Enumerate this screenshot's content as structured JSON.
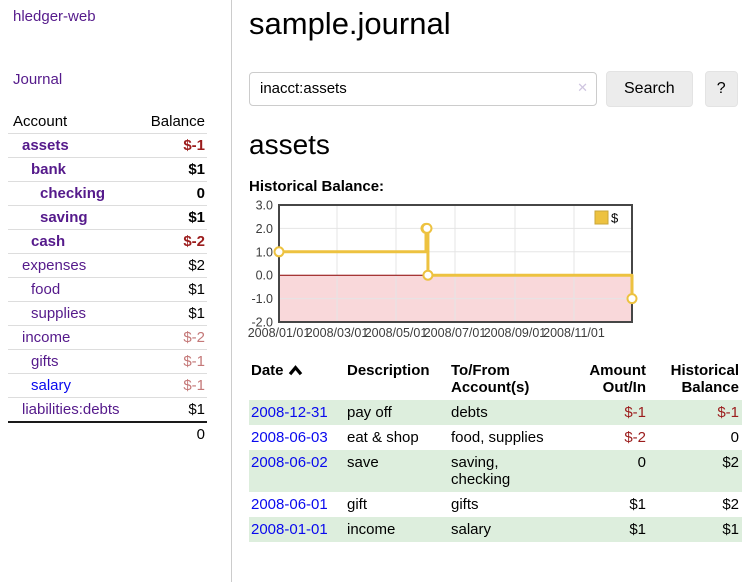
{
  "app": {
    "title": "hledger-web",
    "nav_journal": "Journal"
  },
  "sidebar": {
    "headers": {
      "account": "Account",
      "balance": "Balance"
    },
    "rows": [
      {
        "account": "assets",
        "level": 0,
        "bold": true,
        "link": "visited",
        "balance": "$-1",
        "balance_style": "neg-strong"
      },
      {
        "account": "bank",
        "level": 1,
        "bold": true,
        "link": "visited",
        "balance": "$1",
        "balance_style": "plain"
      },
      {
        "account": "checking",
        "level": 2,
        "bold": true,
        "link": "visited",
        "balance": "0",
        "balance_style": "plain"
      },
      {
        "account": "saving",
        "level": 2,
        "bold": true,
        "link": "visited",
        "balance": "$1",
        "balance_style": "plain"
      },
      {
        "account": "cash",
        "level": 1,
        "bold": true,
        "link": "visited",
        "balance": "$-2",
        "balance_style": "neg-strong"
      },
      {
        "account": "expenses",
        "level": 0,
        "bold": false,
        "link": "visited",
        "balance": "$2",
        "balance_style": "plain"
      },
      {
        "account": "food",
        "level": 1,
        "bold": false,
        "link": "visited",
        "balance": "$1",
        "balance_style": "plain"
      },
      {
        "account": "supplies",
        "level": 1,
        "bold": false,
        "link": "visited",
        "balance": "$1",
        "balance_style": "plain"
      },
      {
        "account": "income",
        "level": 0,
        "bold": false,
        "link": "visited",
        "balance": "$-2",
        "balance_style": "neg-soft"
      },
      {
        "account": "gifts",
        "level": 1,
        "bold": false,
        "link": "visited",
        "balance": "$-1",
        "balance_style": "neg-soft"
      },
      {
        "account": "salary",
        "level": 1,
        "bold": false,
        "link": "unvisited",
        "balance": "$-1",
        "balance_style": "neg-soft"
      },
      {
        "account": "liabilities:debts",
        "level": 0,
        "bold": false,
        "link": "visited",
        "balance": "$1",
        "balance_style": "plain"
      }
    ],
    "total": "0"
  },
  "main": {
    "title": "sample.journal",
    "search": {
      "value": "inacct:assets",
      "clear_icon": "✕",
      "button_label": "Search",
      "help_label": "?"
    },
    "account_heading": "assets",
    "chart_label": "Historical Balance:"
  },
  "chart_data": {
    "type": "line",
    "step": true,
    "title": "Historical Balance",
    "x_range": [
      "2008-01-01",
      "2008-12-31"
    ],
    "ylim": [
      -2,
      3
    ],
    "ytick_values": [
      3,
      2,
      1,
      0,
      -1,
      -2
    ],
    "yticks": [
      "3.0",
      "2.0",
      "1.0",
      "0.0",
      "-1.0",
      "-2.0"
    ],
    "xticks": [
      {
        "label": "2008/01/01",
        "date": "2008-01-01"
      },
      {
        "label": "2008/03/01",
        "date": "2008-03-01"
      },
      {
        "label": "2008/05/01",
        "date": "2008-05-01"
      },
      {
        "label": "2008/07/01",
        "date": "2008-07-01"
      },
      {
        "label": "2008/09/01",
        "date": "2008-09-01"
      },
      {
        "label": "2008/11/01",
        "date": "2008-11-01"
      }
    ],
    "series": [
      {
        "name": "$",
        "color": "#edc240",
        "points": [
          {
            "date": "2008-01-01",
            "value": 1
          },
          {
            "date": "2008-06-01",
            "value": 2
          },
          {
            "date": "2008-06-02",
            "value": 2
          },
          {
            "date": "2008-06-03",
            "value": 0
          },
          {
            "date": "2008-12-31",
            "value": -1
          }
        ]
      }
    ],
    "legend_position": "top-right",
    "grid": true,
    "negative_region_color": "#f9d8da",
    "zero_line_color": "#8b0000"
  },
  "register": {
    "headers": {
      "date": "Date",
      "description": "Description",
      "accounts": "To/From Account(s)",
      "amount": "Amount Out/In",
      "balance": "Historical Balance"
    },
    "rows": [
      {
        "date": "2008-12-31",
        "description": "pay off",
        "accounts": "debts",
        "amount": "$-1",
        "amount_negative": true,
        "balance": "$-1",
        "balance_negative": true,
        "striped": true
      },
      {
        "date": "2008-06-03",
        "description": "eat & shop",
        "accounts": "food, supplies",
        "amount": "$-2",
        "amount_negative": true,
        "balance": "0",
        "balance_negative": false,
        "striped": false
      },
      {
        "date": "2008-06-02",
        "description": "save",
        "accounts": "saving,\nchecking",
        "amount": "0",
        "amount_negative": false,
        "balance": "$2",
        "balance_negative": false,
        "striped": true
      },
      {
        "date": "2008-06-01",
        "description": "gift",
        "accounts": "gifts",
        "amount": "$1",
        "amount_negative": false,
        "balance": "$2",
        "balance_negative": false,
        "striped": false
      },
      {
        "date": "2008-01-01",
        "description": "income",
        "accounts": "salary",
        "amount": "$1",
        "amount_negative": false,
        "balance": "$1",
        "balance_negative": false,
        "striped": true
      }
    ]
  },
  "colors": {
    "link_visited": "#551a8b",
    "link_unvisited": "#0909ee",
    "negative_strong": "#9b1c1c",
    "negative_soft": "#c47878",
    "row_stripe_green": "#ddeedd",
    "chart_line": "#edc240",
    "chart_negative_region": "#f9d8da",
    "chart_zero_line": "#8b0000",
    "chart_border": "#464646"
  }
}
